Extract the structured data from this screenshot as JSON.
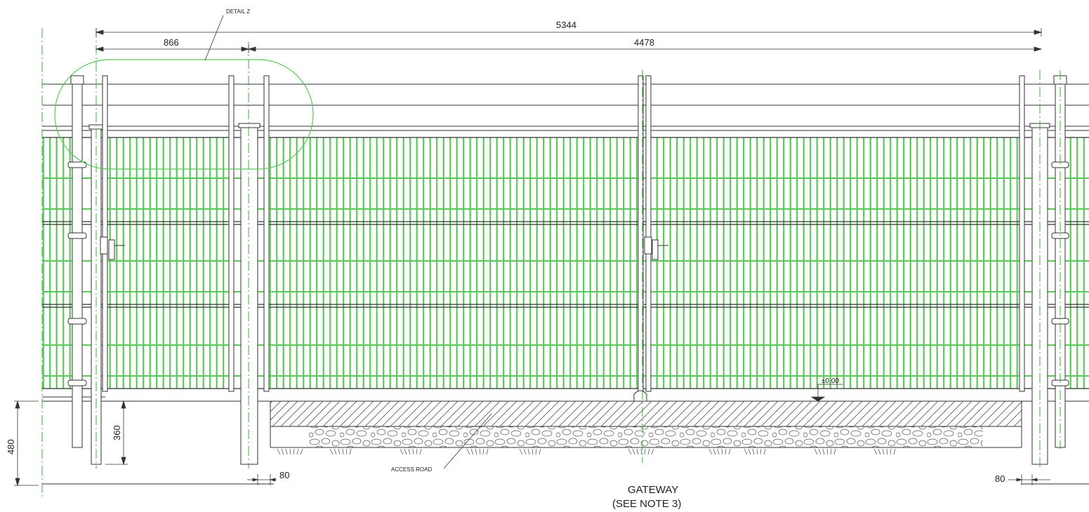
{
  "dimensions": {
    "overall": "5344",
    "left_span": "866",
    "right_span": "4478",
    "post_depth": "480",
    "gate_post_depth": "360",
    "post_offset_left": "80",
    "post_offset_right": "80"
  },
  "labels": {
    "detail": "DETAIL Z",
    "access_road": "ACCESS ROAD",
    "level": "±0.00",
    "caption_line1": "GATEWAY",
    "caption_line2": "(SEE NOTE 3)"
  },
  "colors": {
    "mesh": "#5cc85c",
    "detail_outline": "#5cc85c",
    "centerline": "#3fae3f",
    "line": "#2a2a2a"
  }
}
